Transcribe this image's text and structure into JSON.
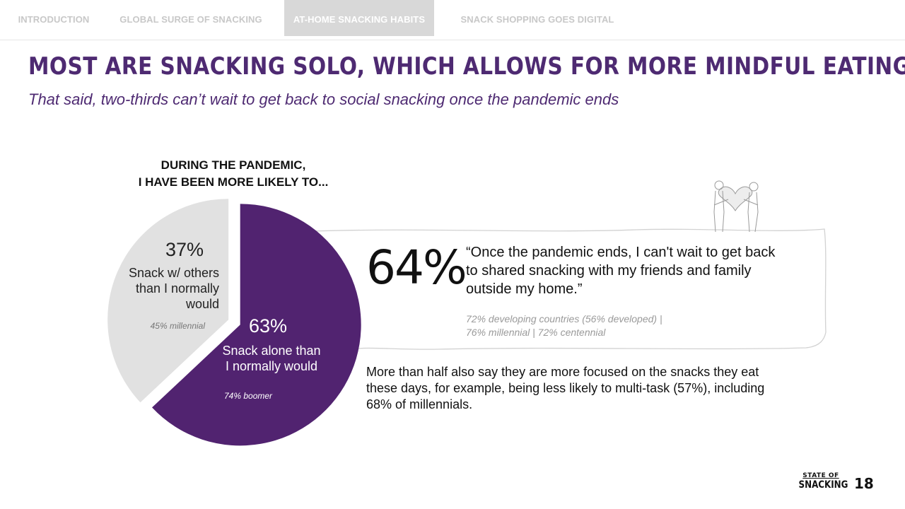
{
  "nav": {
    "tabs": [
      {
        "label": "INTRODUCTION"
      },
      {
        "label": "GLOBAL SURGE OF SNACKING"
      },
      {
        "label": "AT-HOME SNACKING HABITS"
      },
      {
        "label": "SNACK SHOPPING GOES DIGITAL"
      }
    ],
    "active_index": 2
  },
  "header": {
    "title": "MOST ARE SNACKING SOLO, WHICH ALLOWS FOR MORE MINDFUL EATING",
    "subtitle": "That said, two-thirds can’t wait to get back to social snacking once the pandemic ends"
  },
  "chart_data": {
    "type": "pie",
    "title_line1": "DURING THE PANDEMIC,",
    "title_line2": "I HAVE BEEN MORE LIKELY TO...",
    "slices": [
      {
        "value": 63,
        "label": "63%",
        "desc1": "Snack alone than",
        "desc2": "I normally would",
        "note": "74% boomer",
        "color": "#512370",
        "exploded": true
      },
      {
        "value": 37,
        "label": "37%",
        "desc1": "Snack w/ others",
        "desc2": "than I normally",
        "desc3": "would",
        "note": "45% millennial",
        "color": "#e1e1e1",
        "exploded": false
      }
    ]
  },
  "callout": {
    "stat": "64%",
    "quote": "“Once the pandemic ends, I can't wait to get back to shared snacking with my friends and family outside my home.”",
    "note_line1": "72% developing countries (56% developed) |",
    "note_line2": "76% millennial | 72% centennial",
    "illustration_icon": "couple-heart-icon"
  },
  "body": {
    "text": "More than half also say they are more focused on the snacks they eat these days, for example, being less likely to multi-task (57%), including 68% of millennials."
  },
  "footer": {
    "brand_top": "STATE OF",
    "brand_bottom": "SNACKING",
    "page_number": "18"
  },
  "colors": {
    "accent": "#4e2a72",
    "pie_primary": "#512370",
    "pie_secondary": "#e1e1e1",
    "nav_active_bg": "#d8d8d8"
  }
}
